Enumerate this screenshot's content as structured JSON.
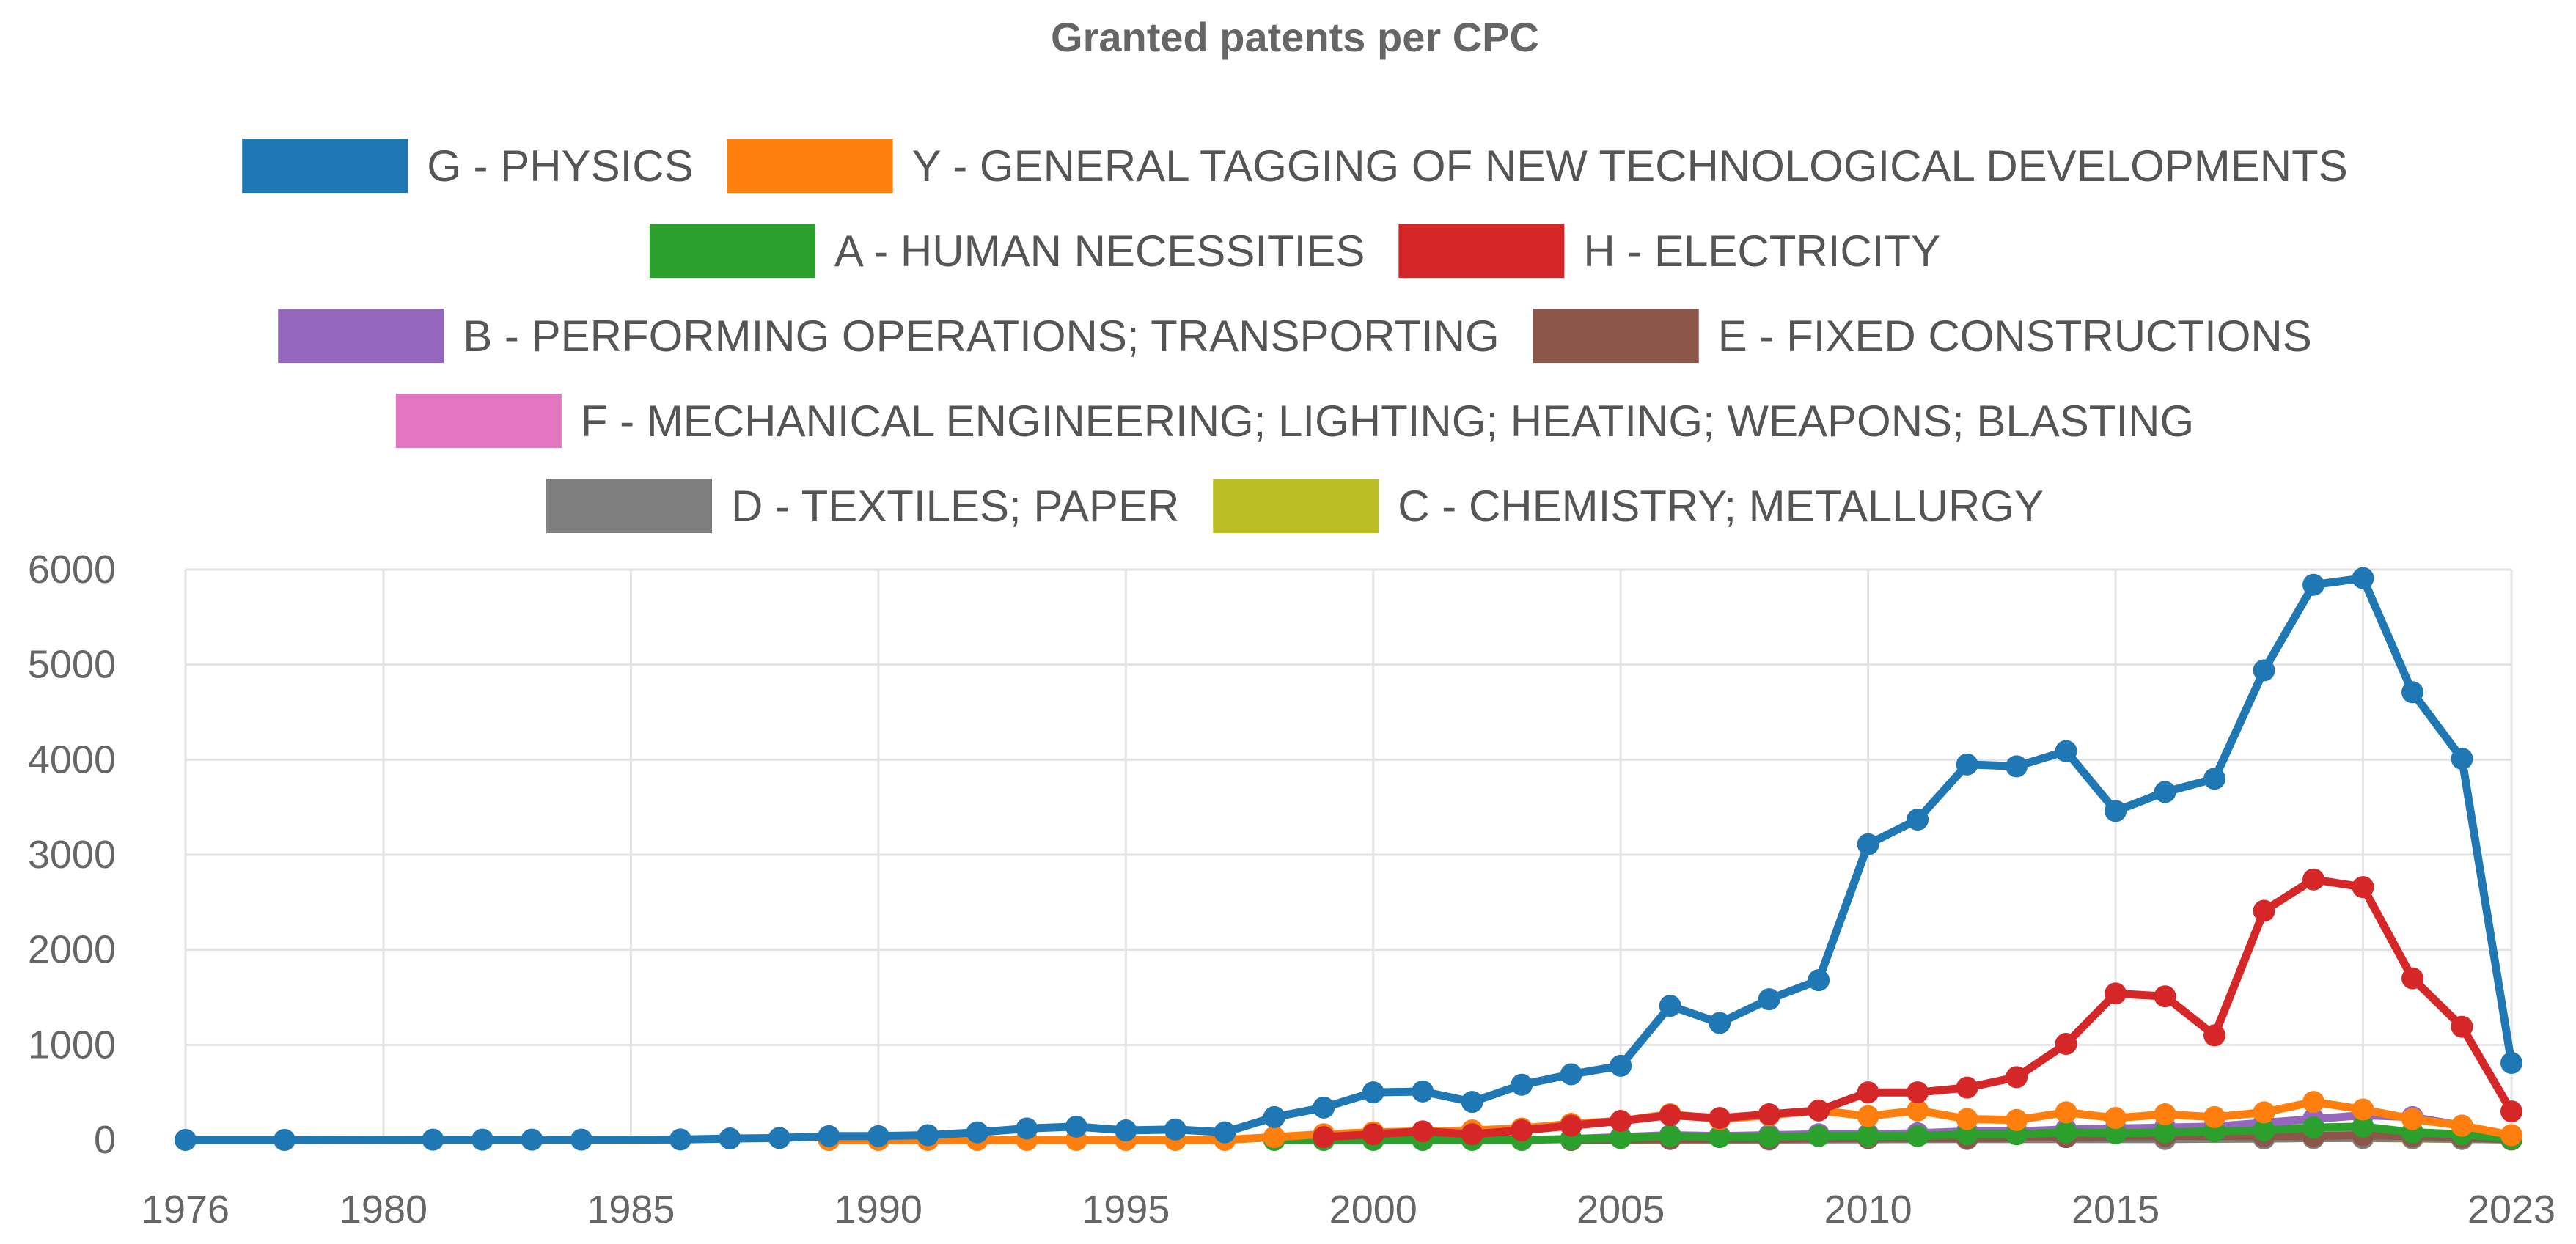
{
  "chart_data": {
    "type": "line",
    "title": "Granted patents per CPC",
    "xlabel": "",
    "ylabel": "",
    "legend_position": "top",
    "grid": true,
    "xlim": [
      1976,
      2023
    ],
    "ylim": [
      0,
      6000
    ],
    "x_ticks": [
      1976,
      1980,
      1985,
      1990,
      1995,
      2000,
      2005,
      2010,
      2015,
      2023
    ],
    "y_ticks": [
      0,
      1000,
      2000,
      3000,
      4000,
      5000,
      6000
    ],
    "series": [
      {
        "name": "G - PHYSICS",
        "color": "#1f77b4",
        "points": [
          [
            1976,
            0
          ],
          [
            1978,
            0
          ],
          [
            1981,
            3
          ],
          [
            1982,
            3
          ],
          [
            1983,
            3
          ],
          [
            1984,
            3
          ],
          [
            1986,
            5
          ],
          [
            1987,
            15
          ],
          [
            1988,
            20
          ],
          [
            1989,
            40
          ],
          [
            1990,
            40
          ],
          [
            1991,
            50
          ],
          [
            1992,
            80
          ],
          [
            1993,
            120
          ],
          [
            1994,
            140
          ],
          [
            1995,
            100
          ],
          [
            1996,
            110
          ],
          [
            1997,
            80
          ],
          [
            1998,
            240
          ],
          [
            1999,
            340
          ],
          [
            2000,
            500
          ],
          [
            2001,
            510
          ],
          [
            2002,
            400
          ],
          [
            2003,
            580
          ],
          [
            2004,
            690
          ],
          [
            2005,
            780
          ],
          [
            2006,
            1410
          ],
          [
            2007,
            1230
          ],
          [
            2008,
            1480
          ],
          [
            2009,
            1680
          ],
          [
            2010,
            3110
          ],
          [
            2011,
            3370
          ],
          [
            2012,
            3950
          ],
          [
            2013,
            3930
          ],
          [
            2014,
            4090
          ],
          [
            2015,
            3460
          ],
          [
            2016,
            3660
          ],
          [
            2017,
            3800
          ],
          [
            2018,
            4940
          ],
          [
            2019,
            5840
          ],
          [
            2020,
            5910
          ],
          [
            2021,
            4710
          ],
          [
            2022,
            4010
          ],
          [
            2023,
            810
          ]
        ]
      },
      {
        "name": "Y - GENERAL TAGGING OF NEW TECHNOLOGICAL DEVELOPMENTS",
        "color": "#ff7f0e",
        "points": [
          [
            1989,
            0
          ],
          [
            1990,
            0
          ],
          [
            1991,
            0
          ],
          [
            1992,
            0
          ],
          [
            1993,
            0
          ],
          [
            1994,
            0
          ],
          [
            1995,
            0
          ],
          [
            1996,
            0
          ],
          [
            1997,
            0
          ],
          [
            1998,
            30
          ],
          [
            1999,
            60
          ],
          [
            2000,
            80
          ],
          [
            2001,
            90
          ],
          [
            2002,
            100
          ],
          [
            2003,
            120
          ],
          [
            2004,
            170
          ],
          [
            2005,
            200
          ],
          [
            2006,
            270
          ],
          [
            2007,
            220
          ],
          [
            2008,
            260
          ],
          [
            2009,
            310
          ],
          [
            2010,
            250
          ],
          [
            2011,
            310
          ],
          [
            2012,
            220
          ],
          [
            2013,
            210
          ],
          [
            2014,
            290
          ],
          [
            2015,
            230
          ],
          [
            2016,
            270
          ],
          [
            2017,
            240
          ],
          [
            2018,
            290
          ],
          [
            2019,
            400
          ],
          [
            2020,
            320
          ],
          [
            2021,
            220
          ],
          [
            2022,
            150
          ],
          [
            2023,
            50
          ]
        ]
      },
      {
        "name": "A - HUMAN NECESSITIES",
        "color": "#2ca02c",
        "points": [
          [
            1998,
            0
          ],
          [
            1999,
            0
          ],
          [
            2000,
            0
          ],
          [
            2001,
            0
          ],
          [
            2002,
            0
          ],
          [
            2003,
            0
          ],
          [
            2004,
            10
          ],
          [
            2005,
            20
          ],
          [
            2006,
            40
          ],
          [
            2007,
            30
          ],
          [
            2008,
            30
          ],
          [
            2009,
            40
          ],
          [
            2010,
            40
          ],
          [
            2011,
            40
          ],
          [
            2012,
            60
          ],
          [
            2013,
            60
          ],
          [
            2014,
            80
          ],
          [
            2015,
            70
          ],
          [
            2016,
            80
          ],
          [
            2017,
            90
          ],
          [
            2018,
            100
          ],
          [
            2019,
            130
          ],
          [
            2020,
            140
          ],
          [
            2021,
            80
          ],
          [
            2022,
            60
          ],
          [
            2023,
            10
          ]
        ]
      },
      {
        "name": "H - ELECTRICITY",
        "color": "#d62728",
        "points": [
          [
            1999,
            30
          ],
          [
            2000,
            60
          ],
          [
            2001,
            90
          ],
          [
            2002,
            60
          ],
          [
            2003,
            100
          ],
          [
            2004,
            150
          ],
          [
            2005,
            200
          ],
          [
            2006,
            260
          ],
          [
            2007,
            230
          ],
          [
            2008,
            270
          ],
          [
            2009,
            310
          ],
          [
            2010,
            500
          ],
          [
            2011,
            500
          ],
          [
            2012,
            550
          ],
          [
            2013,
            660
          ],
          [
            2014,
            1010
          ],
          [
            2015,
            1540
          ],
          [
            2016,
            1510
          ],
          [
            2017,
            1100
          ],
          [
            2018,
            2410
          ],
          [
            2019,
            2740
          ],
          [
            2020,
            2660
          ],
          [
            2021,
            1700
          ],
          [
            2022,
            1190
          ],
          [
            2023,
            300
          ]
        ]
      },
      {
        "name": "B - PERFORMING OPERATIONS; TRANSPORTING",
        "color": "#9467bd",
        "points": [
          [
            2004,
            10
          ],
          [
            2005,
            30
          ],
          [
            2006,
            50
          ],
          [
            2007,
            40
          ],
          [
            2008,
            50
          ],
          [
            2009,
            60
          ],
          [
            2010,
            60
          ],
          [
            2011,
            70
          ],
          [
            2012,
            90
          ],
          [
            2013,
            90
          ],
          [
            2014,
            110
          ],
          [
            2015,
            120
          ],
          [
            2016,
            130
          ],
          [
            2017,
            140
          ],
          [
            2018,
            180
          ],
          [
            2019,
            220
          ],
          [
            2020,
            260
          ],
          [
            2021,
            240
          ],
          [
            2022,
            150
          ],
          [
            2023,
            30
          ]
        ]
      },
      {
        "name": "E - FIXED CONSTRUCTIONS",
        "color": "#8c564b",
        "points": [
          [
            2004,
            0
          ],
          [
            2006,
            10
          ],
          [
            2008,
            10
          ],
          [
            2010,
            20
          ],
          [
            2012,
            20
          ],
          [
            2014,
            30
          ],
          [
            2016,
            40
          ],
          [
            2018,
            40
          ],
          [
            2019,
            40
          ],
          [
            2020,
            50
          ],
          [
            2021,
            40
          ],
          [
            2022,
            30
          ],
          [
            2023,
            5
          ]
        ]
      },
      {
        "name": "F - MECHANICAL ENGINEERING; LIGHTING; HEATING; WEAPONS; BLASTING",
        "color": "#e377c2",
        "points": [
          [
            2004,
            5
          ],
          [
            2006,
            10
          ],
          [
            2008,
            10
          ],
          [
            2010,
            20
          ],
          [
            2012,
            20
          ],
          [
            2014,
            30
          ],
          [
            2016,
            40
          ],
          [
            2018,
            50
          ],
          [
            2019,
            60
          ],
          [
            2020,
            70
          ],
          [
            2021,
            60
          ],
          [
            2022,
            40
          ],
          [
            2023,
            10
          ]
        ]
      },
      {
        "name": "D - TEXTILES; PAPER",
        "color": "#7f7f7f",
        "points": [
          [
            2004,
            0
          ],
          [
            2008,
            5
          ],
          [
            2012,
            10
          ],
          [
            2016,
            10
          ],
          [
            2018,
            15
          ],
          [
            2019,
            20
          ],
          [
            2020,
            20
          ],
          [
            2021,
            20
          ],
          [
            2022,
            10
          ],
          [
            2023,
            5
          ]
        ]
      },
      {
        "name": "C - CHEMISTRY; METALLURGY",
        "color": "#bcbd22",
        "points": [
          [
            2004,
            0
          ],
          [
            2008,
            5
          ],
          [
            2012,
            10
          ],
          [
            2016,
            10
          ],
          [
            2018,
            15
          ],
          [
            2019,
            20
          ],
          [
            2020,
            20
          ],
          [
            2021,
            15
          ],
          [
            2022,
            10
          ],
          [
            2023,
            5
          ]
        ]
      }
    ]
  }
}
